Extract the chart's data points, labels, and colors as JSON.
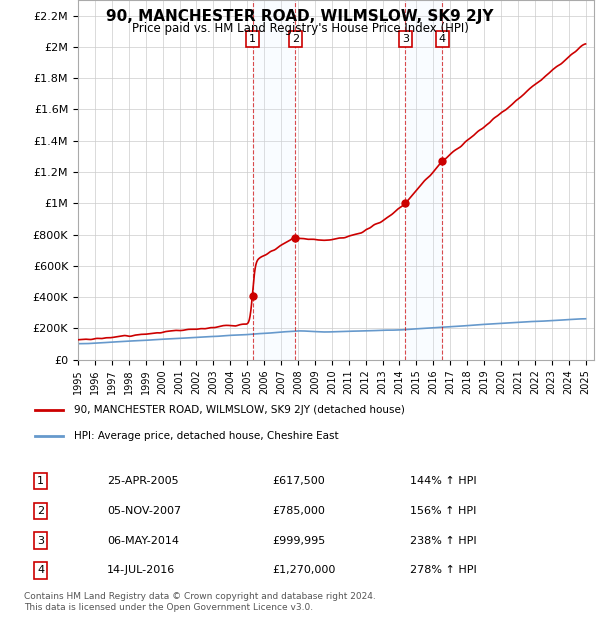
{
  "title": "90, MANCHESTER ROAD, WILMSLOW, SK9 2JY",
  "subtitle": "Price paid vs. HM Land Registry's House Price Index (HPI)",
  "ylabel_ticks": [
    "£0",
    "£200K",
    "£400K",
    "£600K",
    "£800K",
    "£1M",
    "£1.2M",
    "£1.4M",
    "£1.6M",
    "£1.8M",
    "£2M",
    "£2.2M"
  ],
  "ytick_values": [
    0,
    200000,
    400000,
    600000,
    800000,
    1000000,
    1200000,
    1400000,
    1600000,
    1800000,
    2000000,
    2200000
  ],
  "ylim": [
    0,
    2300000
  ],
  "xlim_start": 1995.0,
  "xlim_end": 2025.5,
  "sale_events": [
    {
      "label": "1",
      "date_num": 2005.32,
      "price": 617500,
      "pct": "144%"
    },
    {
      "label": "2",
      "date_num": 2007.84,
      "price": 785000,
      "pct": "156%"
    },
    {
      "label": "3",
      "date_num": 2014.35,
      "price": 999995,
      "pct": "238%"
    },
    {
      "label": "4",
      "date_num": 2016.54,
      "price": 1270000,
      "pct": "278%"
    }
  ],
  "legend_line1": "90, MANCHESTER ROAD, WILMSLOW, SK9 2JY (detached house)",
  "legend_line2": "HPI: Average price, detached house, Cheshire East",
  "table_rows": [
    {
      "num": "1",
      "date": "25-APR-2005",
      "price": "£617,500",
      "pct": "144% ↑ HPI"
    },
    {
      "num": "2",
      "date": "05-NOV-2007",
      "price": "£785,000",
      "pct": "156% ↑ HPI"
    },
    {
      "num": "3",
      "date": "06-MAY-2014",
      "price": "£999,995",
      "pct": "238% ↑ HPI"
    },
    {
      "num": "4",
      "date": "14-JUL-2016",
      "price": "£1,270,000",
      "pct": "278% ↑ HPI"
    }
  ],
  "footer": "Contains HM Land Registry data © Crown copyright and database right 2024.\nThis data is licensed under the Open Government Licence v3.0.",
  "red_line_color": "#cc0000",
  "blue_line_color": "#6699cc",
  "shaded_color": "#ddeeff",
  "box_color": "#cc0000",
  "grid_color": "#cccccc",
  "background_color": "#ffffff"
}
